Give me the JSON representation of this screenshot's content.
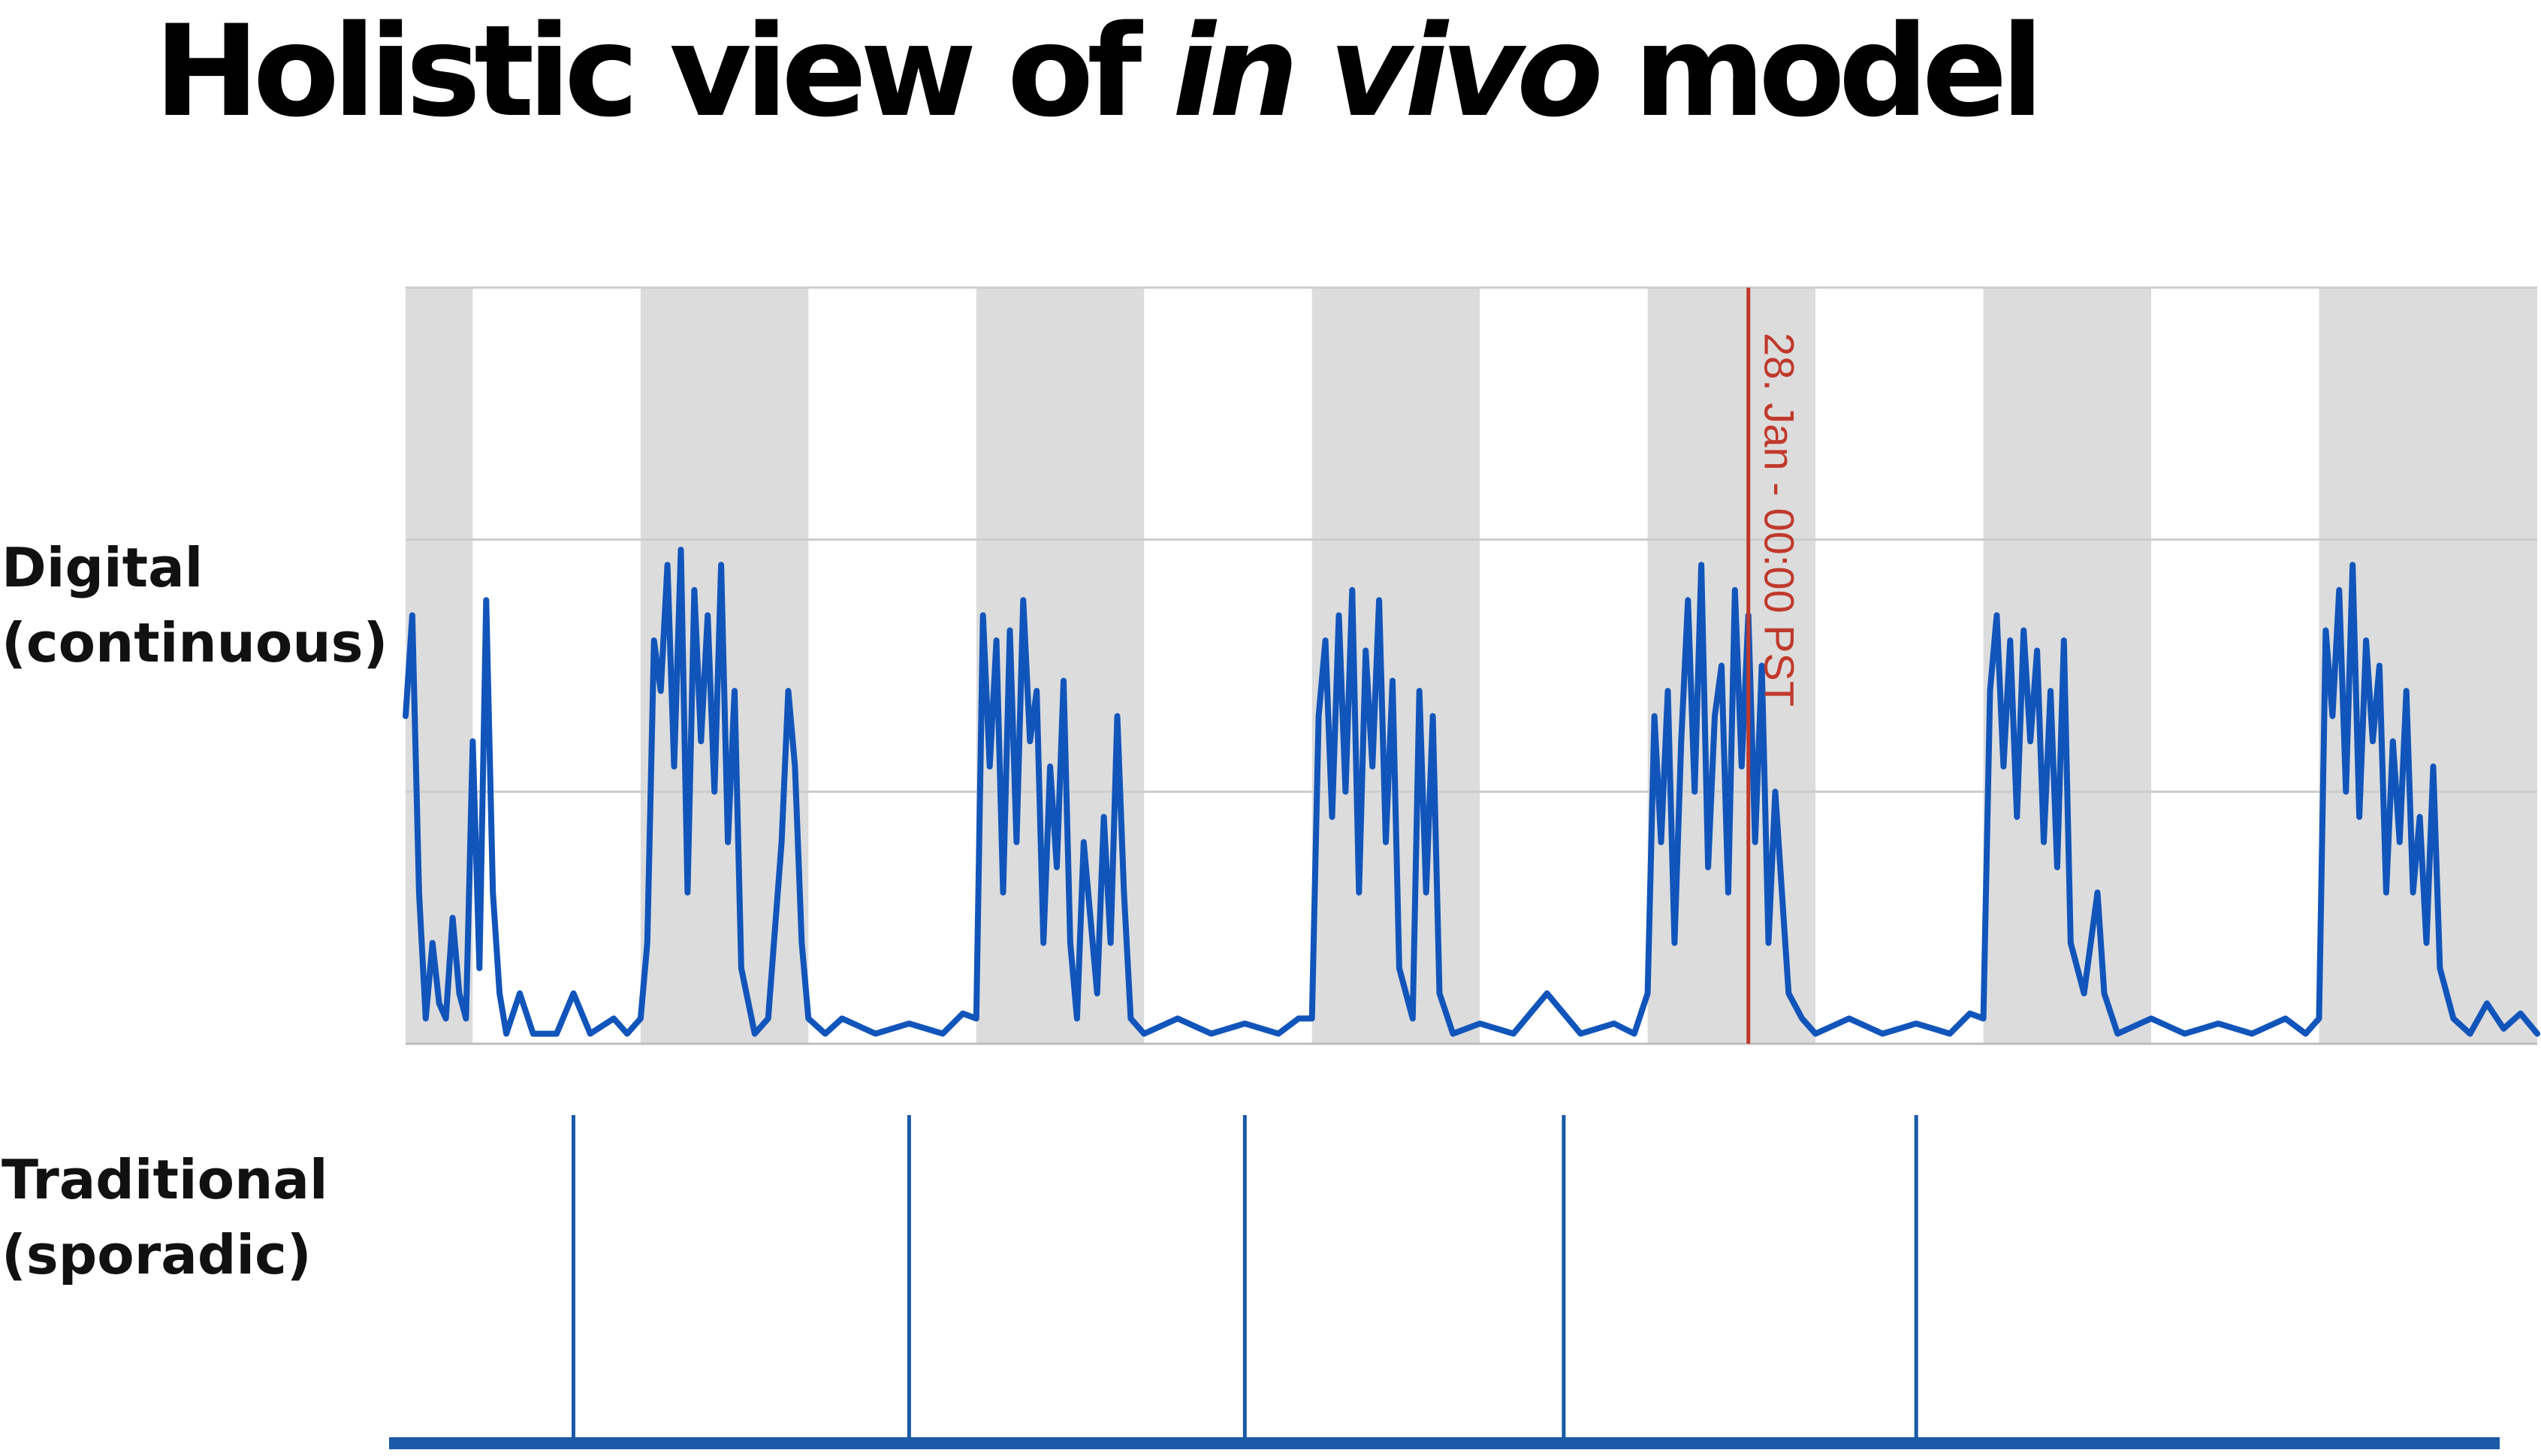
{
  "title": {
    "part1": "Holistic view of ",
    "italic": "in vivo",
    "part2": " model"
  },
  "labels": {
    "digital_line1": "Digital",
    "digital_line2": "(continuous)",
    "traditional_line1": "Traditional",
    "traditional_line2": "(sporadic)"
  },
  "colors": {
    "series": "#1155bb",
    "night_band": "#dcdcdc",
    "grid": "#cccccc",
    "marker": "#c0392b",
    "traditional": "#1a5aa6"
  },
  "chart_data": [
    {
      "type": "line",
      "title": "",
      "xlabel": "",
      "ylabel": "",
      "grid": true,
      "legend": "none",
      "xlim": [
        0,
        6.35
      ],
      "ylim": [
        0,
        1.5
      ],
      "night_bands": [
        [
          0,
          0.2
        ],
        [
          0.7,
          1.2
        ],
        [
          1.7,
          2.2
        ],
        [
          2.7,
          3.2
        ],
        [
          3.7,
          4.2
        ],
        [
          4.7,
          5.2
        ],
        [
          5.7,
          6.35
        ]
      ],
      "marker": {
        "x": 4.0,
        "label": "28. Jan - 00:00 PST"
      },
      "series": [
        {
          "values": [
            [
              0.0,
              0.65
            ],
            [
              0.02,
              0.85
            ],
            [
              0.04,
              0.3
            ],
            [
              0.06,
              0.05
            ],
            [
              0.08,
              0.2
            ],
            [
              0.1,
              0.08
            ],
            [
              0.12,
              0.05
            ],
            [
              0.14,
              0.25
            ],
            [
              0.16,
              0.1
            ],
            [
              0.18,
              0.05
            ],
            [
              0.2,
              0.6
            ],
            [
              0.22,
              0.15
            ],
            [
              0.24,
              0.88
            ],
            [
              0.26,
              0.3
            ],
            [
              0.28,
              0.1
            ],
            [
              0.3,
              0.02
            ],
            [
              0.34,
              0.1
            ],
            [
              0.38,
              0.02
            ],
            [
              0.45,
              0.02
            ],
            [
              0.5,
              0.1
            ],
            [
              0.55,
              0.02
            ],
            [
              0.62,
              0.05
            ],
            [
              0.66,
              0.02
            ],
            [
              0.7,
              0.05
            ],
            [
              0.72,
              0.2
            ],
            [
              0.74,
              0.8
            ],
            [
              0.76,
              0.7
            ],
            [
              0.78,
              0.95
            ],
            [
              0.8,
              0.55
            ],
            [
              0.82,
              0.98
            ],
            [
              0.84,
              0.3
            ],
            [
              0.86,
              0.9
            ],
            [
              0.88,
              0.6
            ],
            [
              0.9,
              0.85
            ],
            [
              0.92,
              0.5
            ],
            [
              0.94,
              0.95
            ],
            [
              0.96,
              0.4
            ],
            [
              0.98,
              0.7
            ],
            [
              1.0,
              0.15
            ],
            [
              1.04,
              0.02
            ],
            [
              1.08,
              0.05
            ],
            [
              1.12,
              0.4
            ],
            [
              1.14,
              0.7
            ],
            [
              1.16,
              0.55
            ],
            [
              1.18,
              0.2
            ],
            [
              1.2,
              0.05
            ],
            [
              1.25,
              0.02
            ],
            [
              1.3,
              0.05
            ],
            [
              1.4,
              0.02
            ],
            [
              1.5,
              0.04
            ],
            [
              1.6,
              0.02
            ],
            [
              1.66,
              0.06
            ],
            [
              1.7,
              0.05
            ],
            [
              1.72,
              0.85
            ],
            [
              1.74,
              0.55
            ],
            [
              1.76,
              0.8
            ],
            [
              1.78,
              0.3
            ],
            [
              1.8,
              0.82
            ],
            [
              1.82,
              0.4
            ],
            [
              1.84,
              0.88
            ],
            [
              1.86,
              0.6
            ],
            [
              1.88,
              0.7
            ],
            [
              1.9,
              0.2
            ],
            [
              1.92,
              0.55
            ],
            [
              1.94,
              0.35
            ],
            [
              1.96,
              0.72
            ],
            [
              1.98,
              0.2
            ],
            [
              2.0,
              0.05
            ],
            [
              2.02,
              0.4
            ],
            [
              2.06,
              0.1
            ],
            [
              2.08,
              0.45
            ],
            [
              2.1,
              0.2
            ],
            [
              2.12,
              0.65
            ],
            [
              2.14,
              0.3
            ],
            [
              2.16,
              0.05
            ],
            [
              2.2,
              0.02
            ],
            [
              2.3,
              0.05
            ],
            [
              2.4,
              0.02
            ],
            [
              2.5,
              0.04
            ],
            [
              2.6,
              0.02
            ],
            [
              2.66,
              0.05
            ],
            [
              2.7,
              0.05
            ],
            [
              2.72,
              0.65
            ],
            [
              2.74,
              0.8
            ],
            [
              2.76,
              0.45
            ],
            [
              2.78,
              0.85
            ],
            [
              2.8,
              0.5
            ],
            [
              2.82,
              0.9
            ],
            [
              2.84,
              0.3
            ],
            [
              2.86,
              0.78
            ],
            [
              2.88,
              0.55
            ],
            [
              2.9,
              0.88
            ],
            [
              2.92,
              0.4
            ],
            [
              2.94,
              0.72
            ],
            [
              2.96,
              0.15
            ],
            [
              3.0,
              0.05
            ],
            [
              3.02,
              0.7
            ],
            [
              3.04,
              0.3
            ],
            [
              3.06,
              0.65
            ],
            [
              3.08,
              0.1
            ],
            [
              3.12,
              0.02
            ],
            [
              3.2,
              0.04
            ],
            [
              3.3,
              0.02
            ],
            [
              3.4,
              0.1
            ],
            [
              3.5,
              0.02
            ],
            [
              3.6,
              0.04
            ],
            [
              3.66,
              0.02
            ],
            [
              3.7,
              0.1
            ],
            [
              3.72,
              0.65
            ],
            [
              3.74,
              0.4
            ],
            [
              3.76,
              0.7
            ],
            [
              3.78,
              0.2
            ],
            [
              3.8,
              0.6
            ],
            [
              3.82,
              0.88
            ],
            [
              3.84,
              0.5
            ],
            [
              3.86,
              0.95
            ],
            [
              3.88,
              0.35
            ],
            [
              3.9,
              0.65
            ],
            [
              3.92,
              0.75
            ],
            [
              3.94,
              0.3
            ],
            [
              3.96,
              0.9
            ],
            [
              3.98,
              0.55
            ],
            [
              4.0,
              0.85
            ],
            [
              4.02,
              0.4
            ],
            [
              4.04,
              0.75
            ],
            [
              4.06,
              0.2
            ],
            [
              4.08,
              0.5
            ],
            [
              4.1,
              0.3
            ],
            [
              4.12,
              0.1
            ],
            [
              4.16,
              0.05
            ],
            [
              4.2,
              0.02
            ],
            [
              4.3,
              0.05
            ],
            [
              4.4,
              0.02
            ],
            [
              4.5,
              0.04
            ],
            [
              4.6,
              0.02
            ],
            [
              4.66,
              0.06
            ],
            [
              4.7,
              0.05
            ],
            [
              4.72,
              0.7
            ],
            [
              4.74,
              0.85
            ],
            [
              4.76,
              0.55
            ],
            [
              4.78,
              0.8
            ],
            [
              4.8,
              0.45
            ],
            [
              4.82,
              0.82
            ],
            [
              4.84,
              0.6
            ],
            [
              4.86,
              0.78
            ],
            [
              4.88,
              0.4
            ],
            [
              4.9,
              0.7
            ],
            [
              4.92,
              0.35
            ],
            [
              4.94,
              0.8
            ],
            [
              4.96,
              0.2
            ],
            [
              5.0,
              0.1
            ],
            [
              5.04,
              0.3
            ],
            [
              5.06,
              0.1
            ],
            [
              5.1,
              0.02
            ],
            [
              5.2,
              0.05
            ],
            [
              5.3,
              0.02
            ],
            [
              5.4,
              0.04
            ],
            [
              5.5,
              0.02
            ],
            [
              5.6,
              0.05
            ],
            [
              5.66,
              0.02
            ],
            [
              5.7,
              0.05
            ],
            [
              5.72,
              0.82
            ],
            [
              5.74,
              0.65
            ],
            [
              5.76,
              0.9
            ],
            [
              5.78,
              0.5
            ],
            [
              5.8,
              0.95
            ],
            [
              5.82,
              0.45
            ],
            [
              5.84,
              0.8
            ],
            [
              5.86,
              0.6
            ],
            [
              5.88,
              0.75
            ],
            [
              5.9,
              0.3
            ],
            [
              5.92,
              0.6
            ],
            [
              5.94,
              0.4
            ],
            [
              5.96,
              0.7
            ],
            [
              5.98,
              0.3
            ],
            [
              6.0,
              0.45
            ],
            [
              6.02,
              0.2
            ],
            [
              6.04,
              0.55
            ],
            [
              6.06,
              0.15
            ],
            [
              6.1,
              0.05
            ],
            [
              6.15,
              0.02
            ],
            [
              6.2,
              0.08
            ],
            [
              6.25,
              0.03
            ],
            [
              6.3,
              0.06
            ],
            [
              6.35,
              0.02
            ]
          ]
        }
      ]
    },
    {
      "type": "bar",
      "title": "",
      "xlabel": "",
      "ylabel": "",
      "grid": false,
      "legend": "none",
      "xlim": [
        0,
        6.35
      ],
      "ylim": [
        0,
        1
      ],
      "x": [
        0.5,
        1.5,
        2.5,
        3.45,
        4.5
      ],
      "values": [
        1,
        1,
        1,
        1,
        1
      ]
    }
  ]
}
